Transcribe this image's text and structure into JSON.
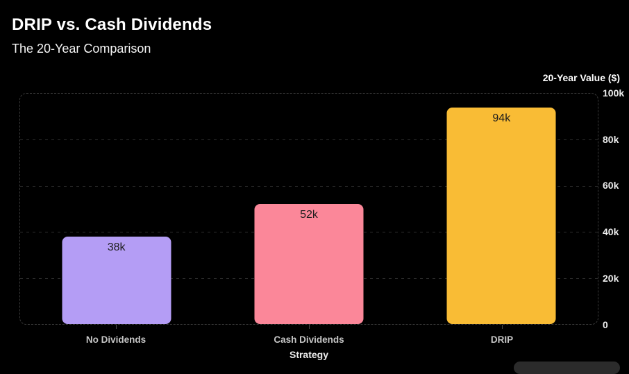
{
  "header": {
    "title": "DRIP vs. Cash Dividends",
    "subtitle": "The 20-Year Comparison"
  },
  "chart_data": {
    "type": "bar",
    "title": "DRIP vs. Cash Dividends",
    "subtitle": "The 20-Year Comparison",
    "categories": [
      "No Dividends",
      "Cash Dividends",
      "DRIP"
    ],
    "values": [
      38000,
      52000,
      94000
    ],
    "value_labels": [
      "38k",
      "52k",
      "94k"
    ],
    "bar_colors": [
      "#b49df5",
      "#fb8799",
      "#f9bc35"
    ],
    "xlabel": "Strategy",
    "ylabel": "20-Year Value ($)",
    "ylim": [
      0,
      100000
    ],
    "y_ticks": [
      "100k",
      "80k",
      "60k",
      "40k",
      "20k",
      "0"
    ],
    "legend": "none",
    "grid": "horizontal-dashed",
    "y_axis_side": "right",
    "theme": {
      "background": "#000000",
      "title_color": "#ffffff",
      "grid_color": "#2f2f2f",
      "plot_border_color": "#3a3a3a",
      "x_label_color": "#c6c6c6",
      "y_tick_color": "#ededed",
      "bar_label_color": "#1c1c1c"
    }
  }
}
